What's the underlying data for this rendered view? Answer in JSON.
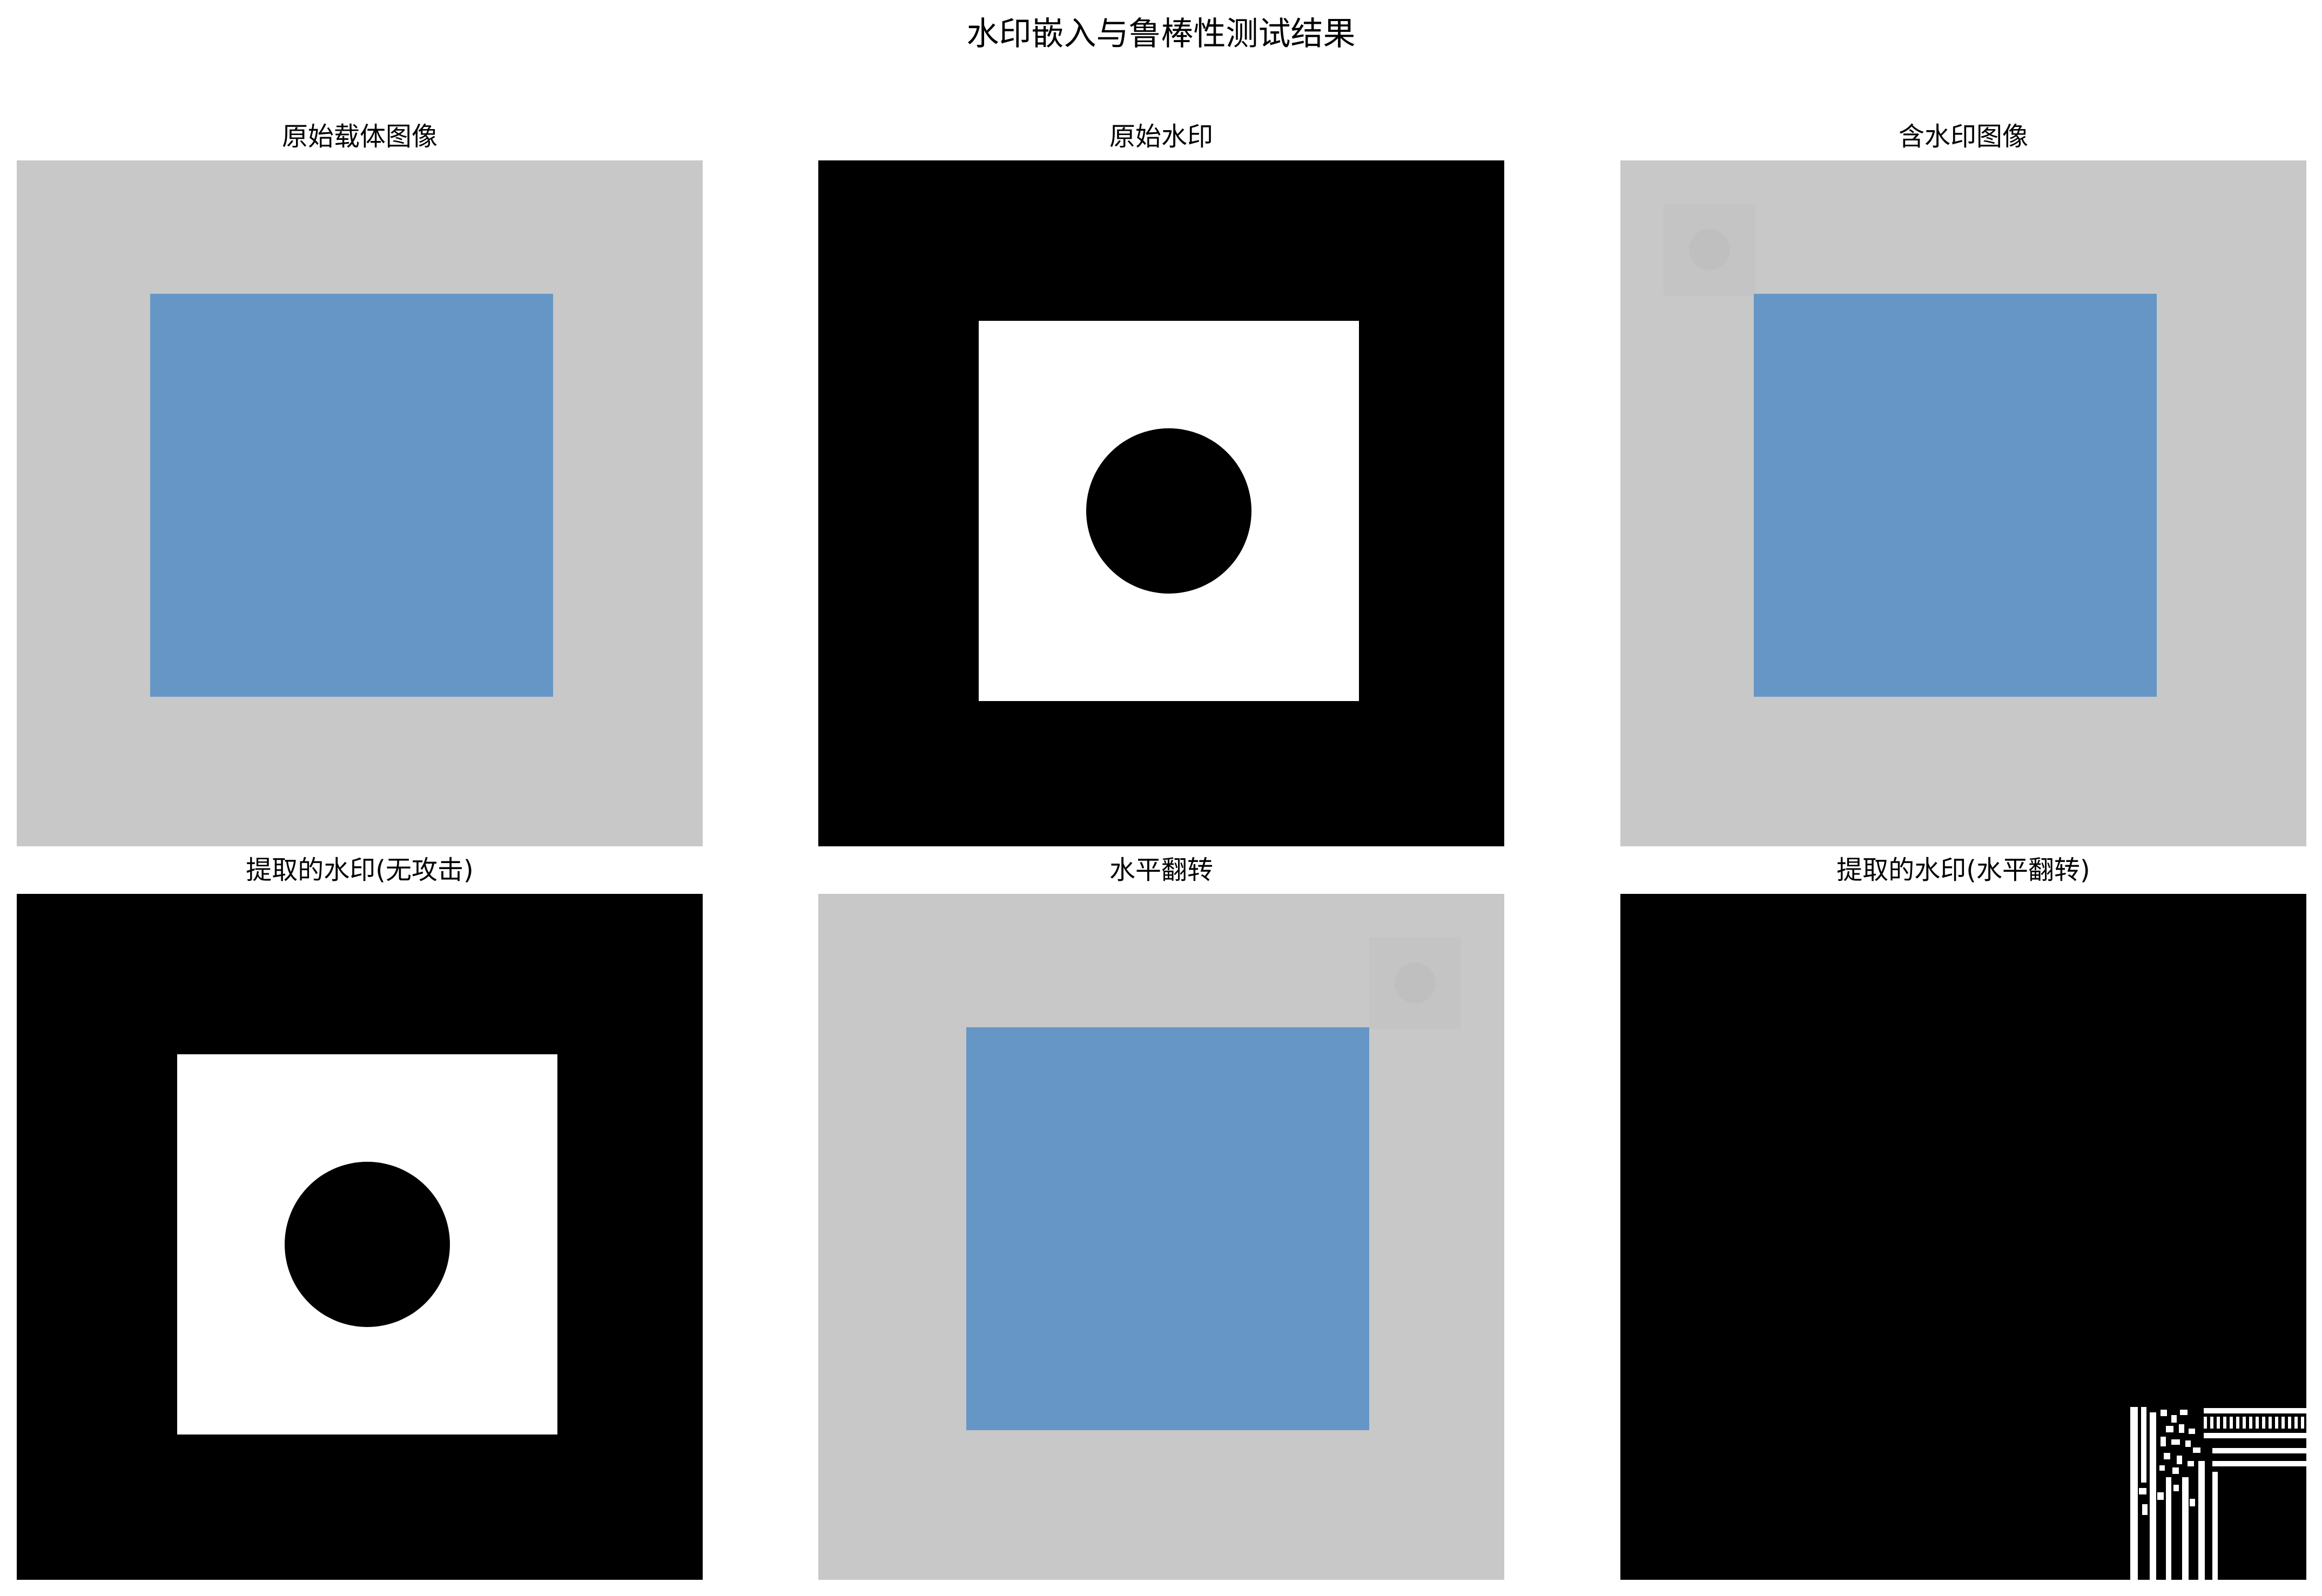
{
  "figure": {
    "title": "水印嵌入与鲁棒性测试结果"
  },
  "colors": {
    "carrier_background": "#c8c8c8",
    "carrier_square": "#6596c6",
    "watermark_background": "#000000",
    "watermark_square": "#ffffff",
    "watermark_circle": "#000000",
    "ghost_mark": "#c3c3c3"
  },
  "panels": [
    {
      "title": "原始载体图像"
    },
    {
      "title": "原始水印"
    },
    {
      "title": "含水印图像"
    },
    {
      "title": "提取的水印(无攻击)"
    },
    {
      "title": "水平翻转"
    },
    {
      "title": "提取的水印(水平翻转)"
    }
  ]
}
